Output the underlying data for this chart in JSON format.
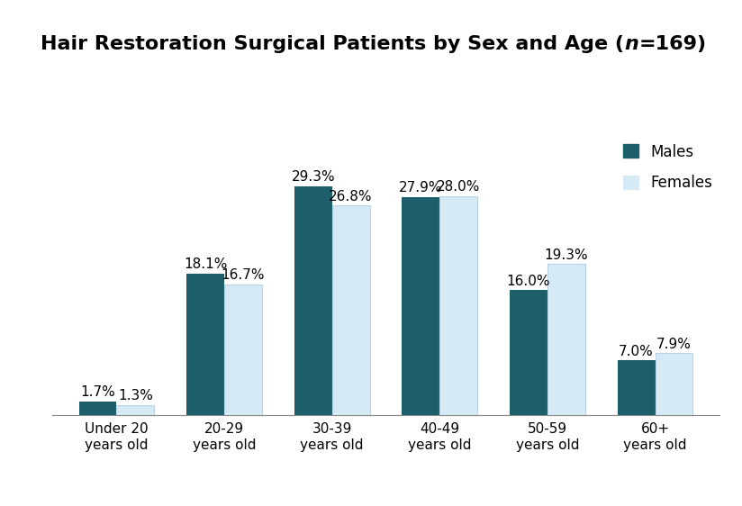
{
  "categories": [
    "Under 20\nyears old",
    "20-29\nyears old",
    "30-39\nyears old",
    "40-49\nyears old",
    "50-59\nyears old",
    "60+\nyears old"
  ],
  "males": [
    1.7,
    18.1,
    29.3,
    27.9,
    16.0,
    7.0
  ],
  "females": [
    1.3,
    16.7,
    26.8,
    28.0,
    19.3,
    7.9
  ],
  "male_color": "#1c5f6b",
  "female_color": "#d6eaf5",
  "female_edge_color": "#b8d4e8",
  "bar_width": 0.35,
  "ylim": [
    0,
    35
  ],
  "legend_labels": [
    "Males",
    "Females"
  ],
  "title_fontsize": 16,
  "tick_fontsize": 11,
  "annotation_fontsize": 11,
  "background_color": "#ffffff"
}
